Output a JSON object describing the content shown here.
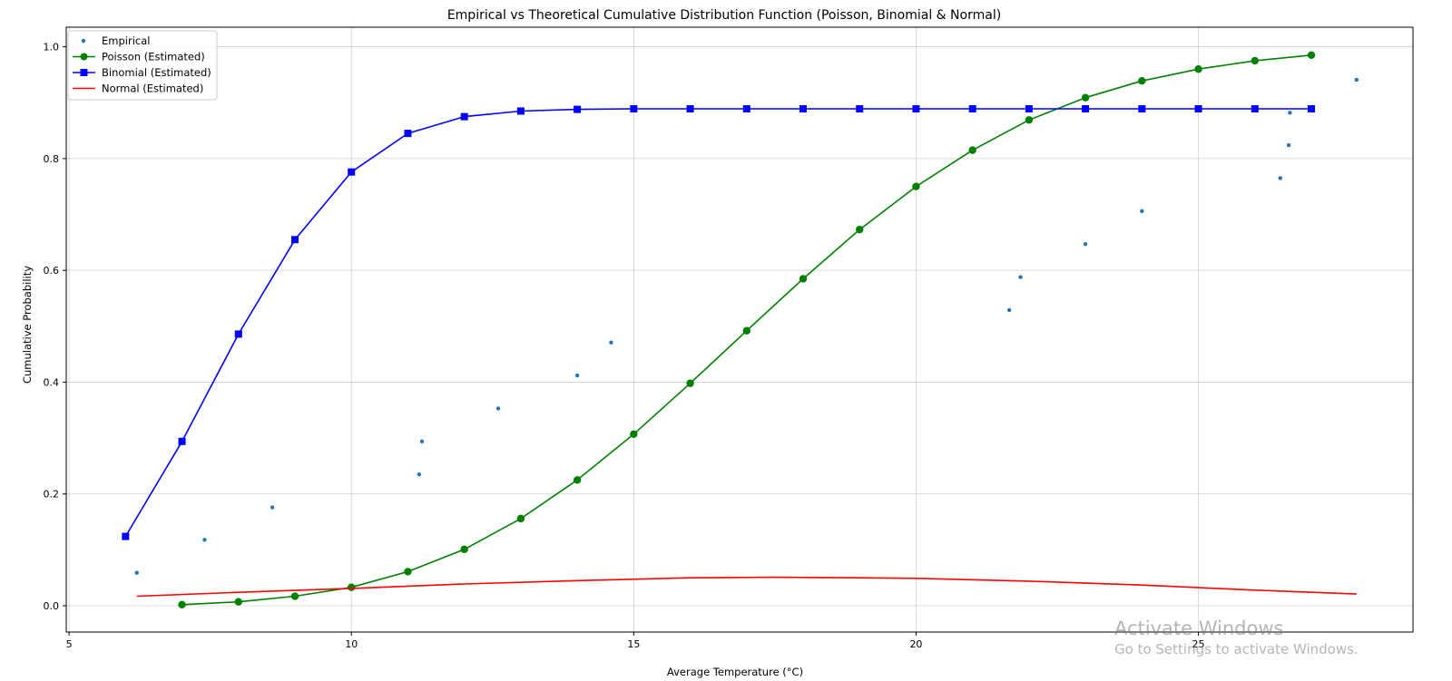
{
  "chart_data": {
    "type": "line",
    "title": "Empirical vs Theoretical Cumulative Distribution Function (Poisson, Binomial & Normal)",
    "xlabel": "Average Temperature (°C)",
    "ylabel": "Cumulative Probability",
    "xlim": [
      4.95,
      28.8
    ],
    "ylim": [
      -0.047,
      1.035
    ],
    "xticks": [
      5,
      10,
      15,
      20,
      25
    ],
    "yticks": [
      0.0,
      0.2,
      0.4,
      0.6,
      0.8,
      1.0
    ],
    "xtick_labels": [
      "5",
      "10",
      "15",
      "20",
      "25"
    ],
    "ytick_labels": [
      "0.0",
      "0.2",
      "0.4",
      "0.6",
      "0.8",
      "1.0"
    ],
    "grid": true,
    "legend_position": "top-left",
    "series": [
      {
        "name": "Empirical",
        "kind": "scatter",
        "color": "#1f77b4",
        "x": [
          6.2,
          7.4,
          8.6,
          11.2,
          11.25,
          12.6,
          14.0,
          14.6,
          21.65,
          21.85,
          23.0,
          24.0,
          26.45,
          26.6,
          26.62,
          27.8
        ],
        "y": [
          0.059,
          0.118,
          0.176,
          0.235,
          0.294,
          0.353,
          0.412,
          0.471,
          0.529,
          0.588,
          0.647,
          0.706,
          0.765,
          0.824,
          0.882,
          0.941
        ]
      },
      {
        "name": "Poisson (Estimated)",
        "kind": "line-marker",
        "marker": "circle",
        "color": "#008000",
        "x": [
          7,
          8,
          9,
          10,
          11,
          12,
          13,
          14,
          15,
          16,
          17,
          18,
          19,
          20,
          21,
          22,
          23,
          24,
          25,
          26,
          27
        ],
        "y": [
          0.002,
          0.007,
          0.017,
          0.033,
          0.061,
          0.101,
          0.156,
          0.225,
          0.307,
          0.398,
          0.492,
          0.585,
          0.673,
          0.75,
          0.815,
          0.869,
          0.909,
          0.939,
          0.96,
          0.975,
          0.985
        ]
      },
      {
        "name": "Binomial (Estimated)",
        "kind": "line-marker",
        "marker": "square",
        "color": "#0000ff",
        "x": [
          6,
          7,
          8,
          9,
          10,
          11,
          12,
          13,
          14,
          15,
          16,
          17,
          18,
          19,
          20,
          21,
          22,
          23,
          24,
          25,
          26,
          27
        ],
        "y": [
          0.124,
          0.294,
          0.486,
          0.655,
          0.776,
          0.845,
          0.875,
          0.885,
          0.888,
          0.889,
          0.889,
          0.889,
          0.889,
          0.889,
          0.889,
          0.889,
          0.889,
          0.889,
          0.889,
          0.889,
          0.889,
          0.889
        ]
      },
      {
        "name": "Normal (Estimated)",
        "kind": "line",
        "color": "#ff0000",
        "x": [
          6.2,
          8,
          10,
          12,
          14,
          16,
          17.5,
          19,
          20,
          22,
          24,
          26,
          27.8
        ],
        "y": [
          0.017,
          0.024,
          0.031,
          0.039,
          0.045,
          0.05,
          0.051,
          0.05,
          0.049,
          0.044,
          0.037,
          0.028,
          0.021
        ]
      }
    ]
  },
  "watermark": {
    "title": "Activate Windows",
    "subtitle": "Go to Settings to activate Windows."
  }
}
